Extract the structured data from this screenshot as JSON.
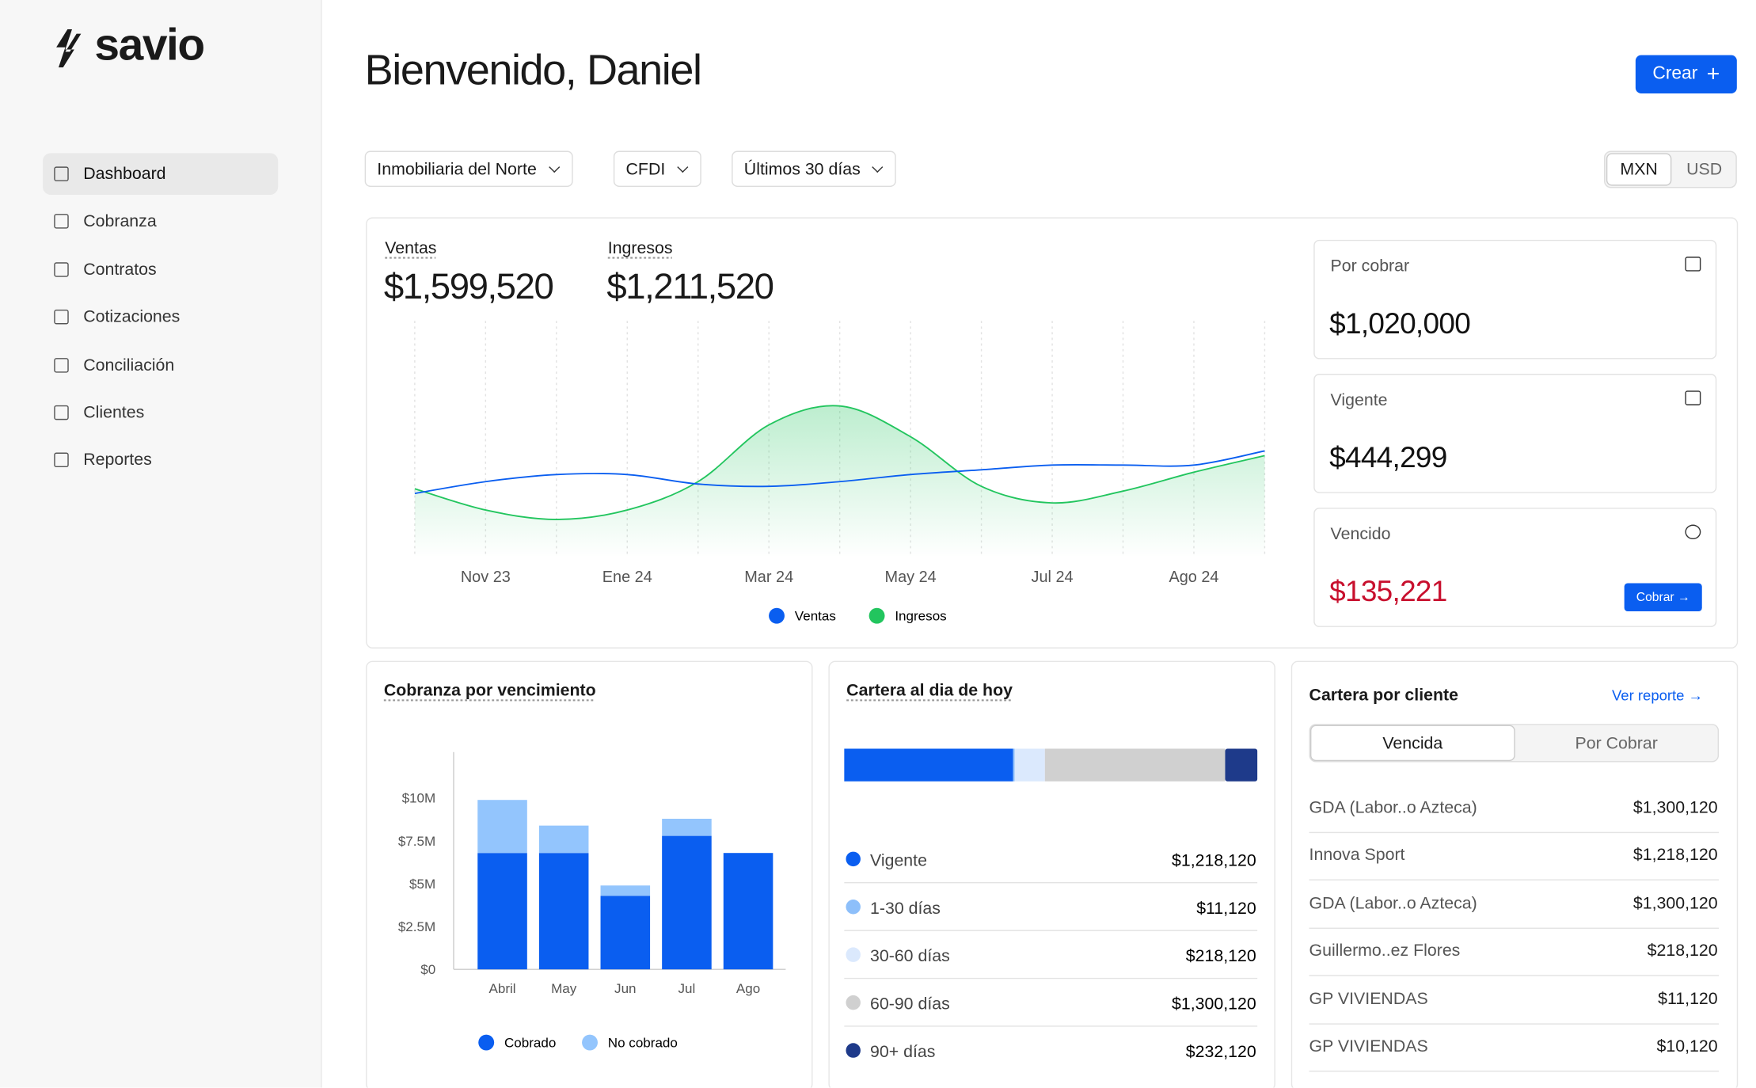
{
  "sidebar": {
    "logo": "savio",
    "nav": [
      "Dashboard",
      "Cobranza",
      "Contratos",
      "Cotizaciones",
      "Conciliación",
      "Clientes",
      "Reportes"
    ]
  },
  "header": {
    "title": "Bienvenido, Daniel",
    "create": "Crear"
  },
  "filters": [
    "Inmobiliaria del Norte",
    "CFDI",
    "Últimos 30 días"
  ],
  "currency": [
    "MXN",
    "USD"
  ],
  "metrics": [
    {
      "label": "Ventas",
      "value": "$1,599,520"
    },
    {
      "label": "Ingresos",
      "value": "$1,211,520"
    }
  ],
  "kpis": [
    {
      "label": "Por cobrar",
      "value": "$1,020,000"
    },
    {
      "label": "Vigente",
      "value": "$444,299"
    },
    {
      "label": "Vencido",
      "value": "$135,221",
      "action": "Cobrar"
    }
  ],
  "chart_data": [
    {
      "type": "line",
      "categories": [
        null,
        "Nov 23",
        null,
        "Ene 24",
        null,
        "Mar 24",
        null,
        "May 24",
        null,
        "Jul 24",
        null,
        "Ago 24",
        null
      ],
      "series": [
        {
          "name": "Ventas",
          "color": "#0a5ef0",
          "values": [
            27,
            32,
            35,
            35,
            31,
            30,
            32,
            35,
            37,
            39,
            39,
            39,
            45
          ]
        },
        {
          "name": "Ingresos",
          "color": "#22c55e",
          "values": [
            29,
            20,
            16,
            20,
            32,
            56,
            64,
            51,
            30,
            23,
            28,
            36,
            43
          ]
        }
      ],
      "ylim": [
        0,
        100
      ],
      "grid": true
    },
    {
      "type": "bar",
      "stacked": true,
      "title": "Cobranza por vencimiento",
      "categories": [
        "Abril",
        "May",
        "Jun",
        "Jul",
        "Ago"
      ],
      "series": [
        {
          "name": "Cobrado",
          "color": "#0a5ef0",
          "values": [
            6.8,
            6.8,
            4.3,
            7.8,
            6.8
          ]
        },
        {
          "name": "No cobrado",
          "color": "#93c5fd",
          "values": [
            3.1,
            1.6,
            0.6,
            1.0,
            0
          ]
        }
      ],
      "ylim": [
        0,
        12.7
      ],
      "yticks": [
        {
          "value": 0,
          "label": "$0"
        },
        {
          "value": 2.5,
          "label": "$2.5M"
        },
        {
          "value": 5,
          "label": "$5M"
        },
        {
          "value": 7.5,
          "label": "$7.5M"
        },
        {
          "value": 10,
          "label": "$10M"
        }
      ]
    },
    {
      "type": "stacked_hbar",
      "title": "Cartera al dia de hoy",
      "categories": [
        "Vigente",
        "1-30 días",
        "30-60 días",
        "60-90 días",
        "90+ días"
      ],
      "values": [
        1218120,
        11120,
        218120,
        1300120,
        232120
      ],
      "value_labels": [
        "$1,218,120",
        "$11,120",
        "$218,120",
        "$1,300,120",
        "$232,120"
      ],
      "colors": [
        "#0a5ef0",
        "#8dbffa",
        "#dbe9fd",
        "#d0d0d0",
        "#1e3a8a"
      ]
    }
  ],
  "cartera_cliente": {
    "title": "Cartera por cliente",
    "link": "Ver reporte",
    "tabs": [
      "Vencida",
      "Por Cobrar"
    ],
    "rows": [
      [
        "GDA (Labor..o Azteca)",
        "$1,300,120"
      ],
      [
        "Innova Sport",
        "$1,218,120"
      ],
      [
        "GDA (Labor..o Azteca)",
        "$1,300,120"
      ],
      [
        "Guillermo..ez Flores",
        "$218,120"
      ],
      [
        "GP VIVIENDAS",
        "$11,120"
      ],
      [
        "GP VIVIENDAS",
        "$10,120"
      ]
    ]
  }
}
